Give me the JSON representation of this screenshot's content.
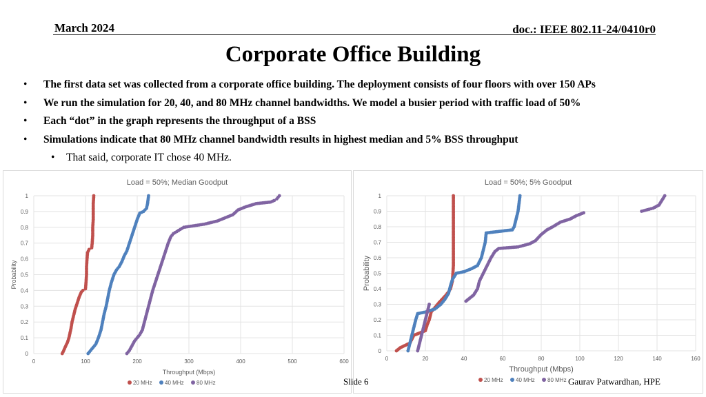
{
  "header": {
    "date": "March 2024",
    "doc": "doc.: IEEE 802.11-24/0410r0"
  },
  "title": "Corporate Office Building",
  "bullets": [
    "The first data set was collected from a corporate office building. The deployment consists of four floors with over 150 APs",
    "We run the simulation for 20, 40, and 80 MHz channel bandwidths. We model a busier period with traffic load of 50%",
    "Each “dot” in the graph represents the throughput of a BSS",
    "Simulations indicate that 80 MHz channel bandwidth results in highest median and 5% BSS throughput"
  ],
  "sub_bullet": "That said, corporate IT chose 40 MHz.",
  "bullet_glyph": "•",
  "footer": {
    "slide": "Slide 6",
    "author": "Gaurav Patwardhan, HPE"
  },
  "chart_data": [
    {
      "type": "scatter",
      "title": "Load = 50%; Median Goodput",
      "xlabel": "Throughput (Mbps)",
      "ylabel": "Probability",
      "xlim": [
        0,
        600
      ],
      "ylim": [
        0,
        1
      ],
      "xticks": [
        "0",
        "100",
        "200",
        "300",
        "400",
        "500",
        "600"
      ],
      "yticks": [
        "0",
        "0.1",
        "0.2",
        "0.3",
        "0.4",
        "0.5",
        "0.6",
        "0.7",
        "0.8",
        "0.9",
        "1"
      ],
      "grid": true,
      "legend": "bottom",
      "series": [
        {
          "name": "20 MHz",
          "color": "#c0504d",
          "points": [
            [
              55,
              0
            ],
            [
              58,
              0.02
            ],
            [
              62,
              0.05
            ],
            [
              65,
              0.07
            ],
            [
              68,
              0.1
            ],
            [
              70,
              0.13
            ],
            [
              72,
              0.16
            ],
            [
              74,
              0.2
            ],
            [
              77,
              0.24
            ],
            [
              80,
              0.28
            ],
            [
              84,
              0.32
            ],
            [
              88,
              0.36
            ],
            [
              92,
              0.39
            ],
            [
              95,
              0.4
            ],
            [
              100,
              0.41
            ],
            [
              101,
              0.45
            ],
            [
              102,
              0.5
            ],
            [
              102,
              0.55
            ],
            [
              103,
              0.6
            ],
            [
              104,
              0.64
            ],
            [
              107,
              0.66
            ],
            [
              112,
              0.67
            ],
            [
              113,
              0.7
            ],
            [
              114,
              0.75
            ],
            [
              114,
              0.8
            ],
            [
              115,
              0.85
            ],
            [
              115,
              0.9
            ],
            [
              115,
              0.95
            ],
            [
              116,
              1.0
            ]
          ]
        },
        {
          "name": "40 MHz",
          "color": "#4f81bd",
          "points": [
            [
              105,
              0
            ],
            [
              110,
              0.02
            ],
            [
              115,
              0.04
            ],
            [
              120,
              0.06
            ],
            [
              125,
              0.1
            ],
            [
              130,
              0.15
            ],
            [
              133,
              0.2
            ],
            [
              136,
              0.25
            ],
            [
              140,
              0.3
            ],
            [
              143,
              0.35
            ],
            [
              146,
              0.4
            ],
            [
              150,
              0.45
            ],
            [
              155,
              0.5
            ],
            [
              160,
              0.53
            ],
            [
              165,
              0.55
            ],
            [
              170,
              0.58
            ],
            [
              175,
              0.62
            ],
            [
              180,
              0.65
            ],
            [
              185,
              0.7
            ],
            [
              190,
              0.75
            ],
            [
              195,
              0.8
            ],
            [
              200,
              0.85
            ],
            [
              205,
              0.89
            ],
            [
              212,
              0.9
            ],
            [
              218,
              0.92
            ],
            [
              220,
              0.95
            ],
            [
              222,
              1.0
            ]
          ]
        },
        {
          "name": "80 MHz",
          "color": "#8064a2",
          "points": [
            [
              180,
              0
            ],
            [
              185,
              0.02
            ],
            [
              190,
              0.05
            ],
            [
              195,
              0.08
            ],
            [
              200,
              0.1
            ],
            [
              205,
              0.12
            ],
            [
              210,
              0.15
            ],
            [
              214,
              0.2
            ],
            [
              218,
              0.25
            ],
            [
              222,
              0.3
            ],
            [
              226,
              0.35
            ],
            [
              230,
              0.4
            ],
            [
              235,
              0.45
            ],
            [
              240,
              0.5
            ],
            [
              245,
              0.55
            ],
            [
              250,
              0.6
            ],
            [
              255,
              0.65
            ],
            [
              260,
              0.7
            ],
            [
              265,
              0.74
            ],
            [
              270,
              0.76
            ],
            [
              280,
              0.78
            ],
            [
              290,
              0.8
            ],
            [
              310,
              0.81
            ],
            [
              330,
              0.82
            ],
            [
              355,
              0.84
            ],
            [
              370,
              0.86
            ],
            [
              385,
              0.88
            ],
            [
              395,
              0.91
            ],
            [
              410,
              0.93
            ],
            [
              430,
              0.95
            ],
            [
              458,
              0.96
            ],
            [
              465,
              0.97
            ],
            [
              470,
              0.98
            ],
            [
              475,
              1.0
            ]
          ]
        }
      ]
    },
    {
      "type": "scatter",
      "title": "Load = 50%; 5% Goodput",
      "xlabel": "Throughput (Mbps)",
      "ylabel": "Probability",
      "xlim": [
        0,
        160
      ],
      "ylim": [
        0,
        1
      ],
      "xticks": [
        "0",
        "20",
        "40",
        "60",
        "80",
        "100",
        "120",
        "140",
        "160"
      ],
      "yticks": [
        "0",
        "0.1",
        "0.2",
        "0.3",
        "0.4",
        "0.5",
        "0.6",
        "0.7",
        "0.8",
        "0.9",
        "1"
      ],
      "grid": true,
      "legend": "bottom",
      "series": [
        {
          "name": "20 MHz",
          "color": "#c0504d",
          "points": [
            [
              5,
              0
            ],
            [
              7,
              0.02
            ],
            [
              12,
              0.05
            ],
            [
              14,
              0.1
            ],
            [
              20,
              0.13
            ],
            [
              21,
              0.17
            ],
            [
              22,
              0.2
            ],
            [
              23,
              0.25
            ],
            [
              25,
              0.28
            ],
            [
              27,
              0.31
            ],
            [
              30,
              0.35
            ],
            [
              32,
              0.38
            ],
            [
              33,
              0.4
            ],
            [
              34,
              0.45
            ],
            [
              34.5,
              0.55
            ],
            [
              34.5,
              0.65
            ],
            [
              34.5,
              0.75
            ],
            [
              34.5,
              0.85
            ],
            [
              34.5,
              0.95
            ],
            [
              34.5,
              1.0
            ]
          ]
        },
        {
          "name": "40 MHz",
          "color": "#4f81bd",
          "points": [
            [
              11,
              0
            ],
            [
              12,
              0.05
            ],
            [
              13,
              0.1
            ],
            [
              14,
              0.15
            ],
            [
              15,
              0.2
            ],
            [
              16,
              0.24
            ],
            [
              20,
              0.25
            ],
            [
              25,
              0.27
            ],
            [
              28,
              0.3
            ],
            [
              30,
              0.33
            ],
            [
              32,
              0.37
            ],
            [
              33,
              0.42
            ],
            [
              34,
              0.46
            ],
            [
              36,
              0.5
            ],
            [
              40,
              0.51
            ],
            [
              44,
              0.53
            ],
            [
              47,
              0.55
            ],
            [
              49,
              0.6
            ],
            [
              50,
              0.65
            ],
            [
              51,
              0.7
            ],
            [
              51.5,
              0.76
            ],
            [
              65,
              0.78
            ],
            [
              66,
              0.8
            ],
            [
              67,
              0.85
            ],
            [
              68,
              0.9
            ],
            [
              68.5,
              0.95
            ],
            [
              69,
              1.0
            ]
          ]
        },
        {
          "name": "80 MHz",
          "color": "#8064a2",
          "points": [
            [
              16,
              0
            ],
            [
              17,
              0.05
            ],
            [
              18,
              0.1
            ],
            [
              19,
              0.15
            ],
            [
              20,
              0.2
            ],
            [
              21,
              0.25
            ],
            [
              22,
              0.3
            ],
            [
              41,
              0.32
            ],
            [
              43,
              0.34
            ],
            [
              45,
              0.36
            ],
            [
              47,
              0.4
            ],
            [
              48,
              0.45
            ],
            [
              50,
              0.5
            ],
            [
              52,
              0.55
            ],
            [
              54,
              0.6
            ],
            [
              56,
              0.64
            ],
            [
              58,
              0.66
            ],
            [
              68,
              0.67
            ],
            [
              74,
              0.69
            ],
            [
              77,
              0.71
            ],
            [
              80,
              0.75
            ],
            [
              83,
              0.78
            ],
            [
              86,
              0.8
            ],
            [
              90,
              0.83
            ],
            [
              95,
              0.85
            ],
            [
              98,
              0.87
            ],
            [
              102,
              0.89
            ],
            [
              132,
              0.9
            ],
            [
              135,
              0.91
            ],
            [
              138,
              0.92
            ],
            [
              141,
              0.94
            ],
            [
              142,
              0.96
            ],
            [
              143,
              0.98
            ],
            [
              144,
              1.0
            ]
          ]
        }
      ]
    }
  ]
}
